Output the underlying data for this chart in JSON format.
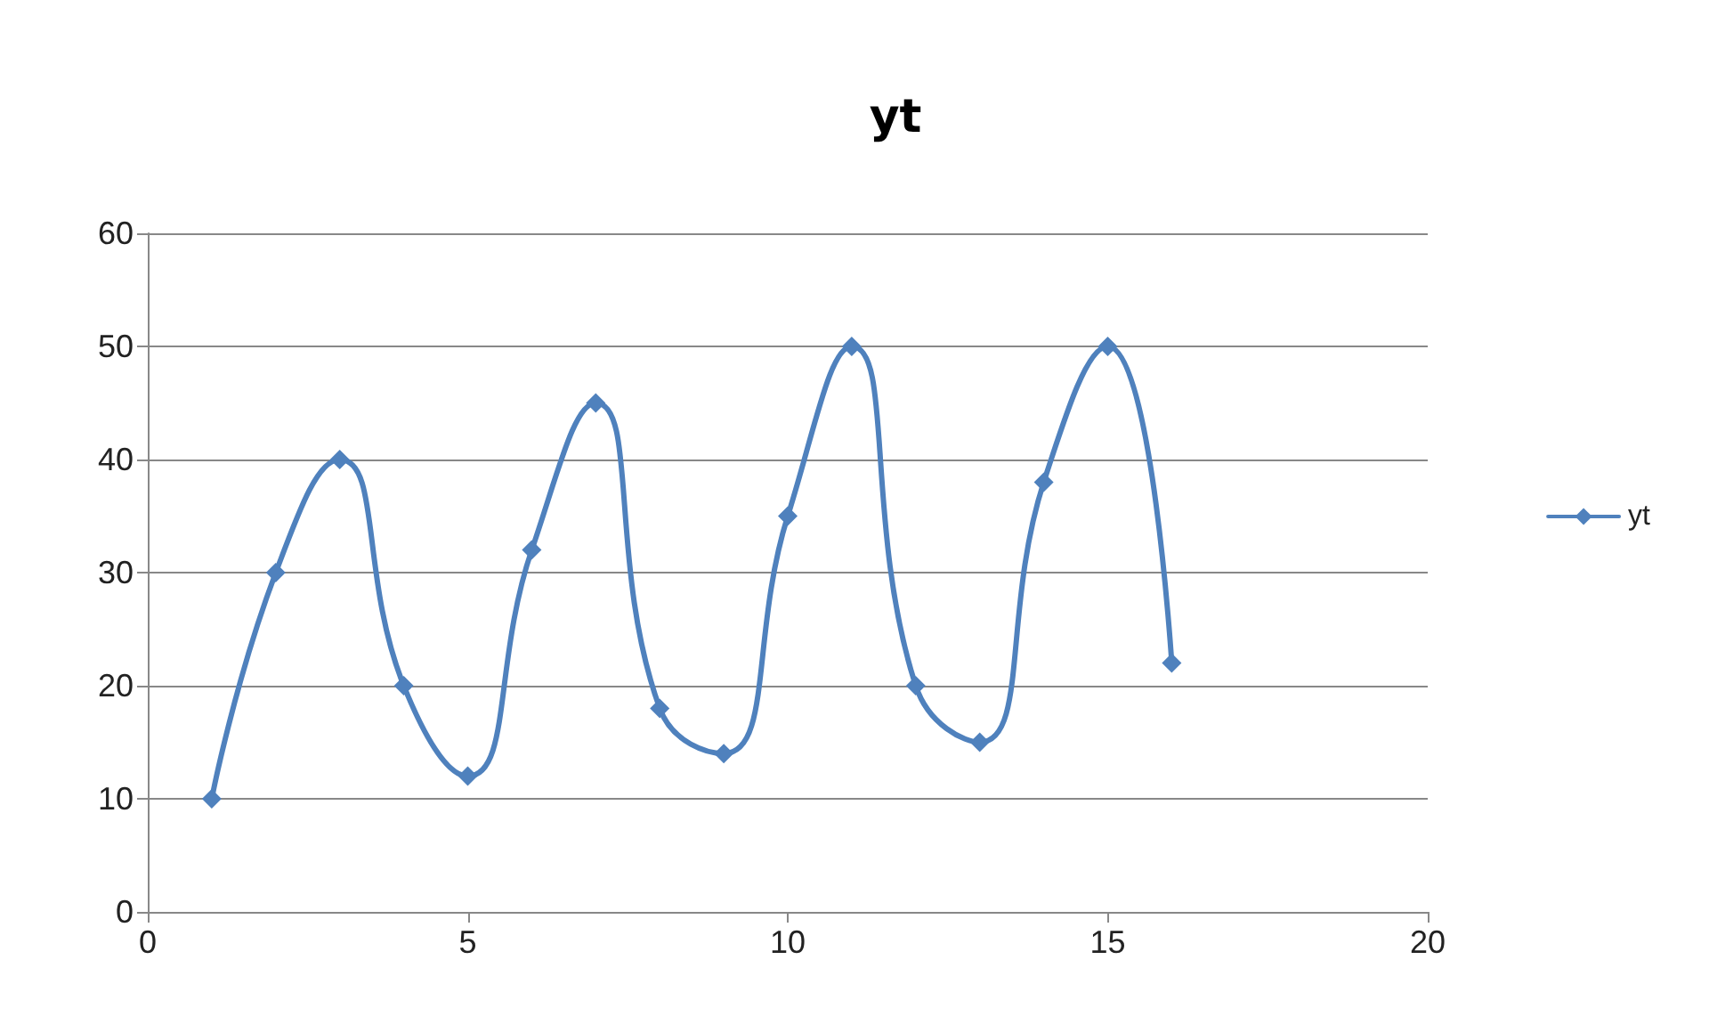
{
  "chart_data": {
    "type": "line",
    "title": "yt",
    "x": [
      1,
      2,
      3,
      4,
      5,
      6,
      7,
      8,
      9,
      10,
      11,
      12,
      13,
      14,
      15,
      16
    ],
    "series": [
      {
        "name": "yt",
        "color": "#4f81bd",
        "values": [
          10,
          30,
          40,
          20,
          12,
          32,
          45,
          18,
          14,
          35,
          50,
          20,
          15,
          38,
          50,
          22
        ]
      }
    ],
    "xlim": [
      0,
      20
    ],
    "xticks": [
      0,
      5,
      10,
      15,
      20
    ],
    "ylim": [
      0,
      60
    ],
    "yticks": [
      0,
      10,
      20,
      30,
      40,
      50,
      60
    ],
    "grid": "y",
    "legend": "right",
    "marker": "diamond",
    "line_style": "solid"
  }
}
